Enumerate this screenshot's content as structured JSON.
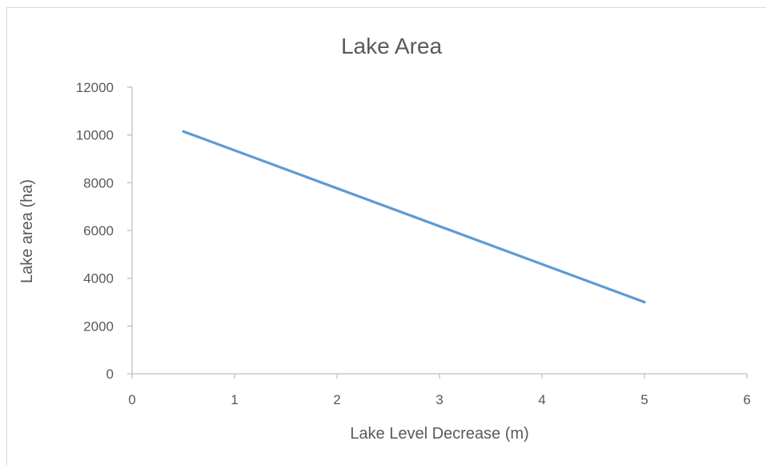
{
  "chart_data": {
    "type": "line",
    "title": "Lake Area",
    "xlabel": "Lake Level Decrease (m)",
    "ylabel": "Lake area (ha)",
    "xlim": [
      0,
      6
    ],
    "ylim": [
      0,
      12000
    ],
    "x_ticks": [
      "0",
      "1",
      "2",
      "3",
      "4",
      "5",
      "6"
    ],
    "y_ticks": [
      "0",
      "2000",
      "4000",
      "6000",
      "8000",
      "10000",
      "12000"
    ],
    "grid": false,
    "legend": "none",
    "series": [
      {
        "color": "#5b9bd5",
        "points": [
          {
            "x": 0.5,
            "y": 10150
          },
          {
            "x": 5,
            "y": 3000
          }
        ]
      }
    ]
  },
  "colors": {
    "axis": "#bfbfbf",
    "text": "#595959",
    "frame": "#d9d9d9"
  }
}
